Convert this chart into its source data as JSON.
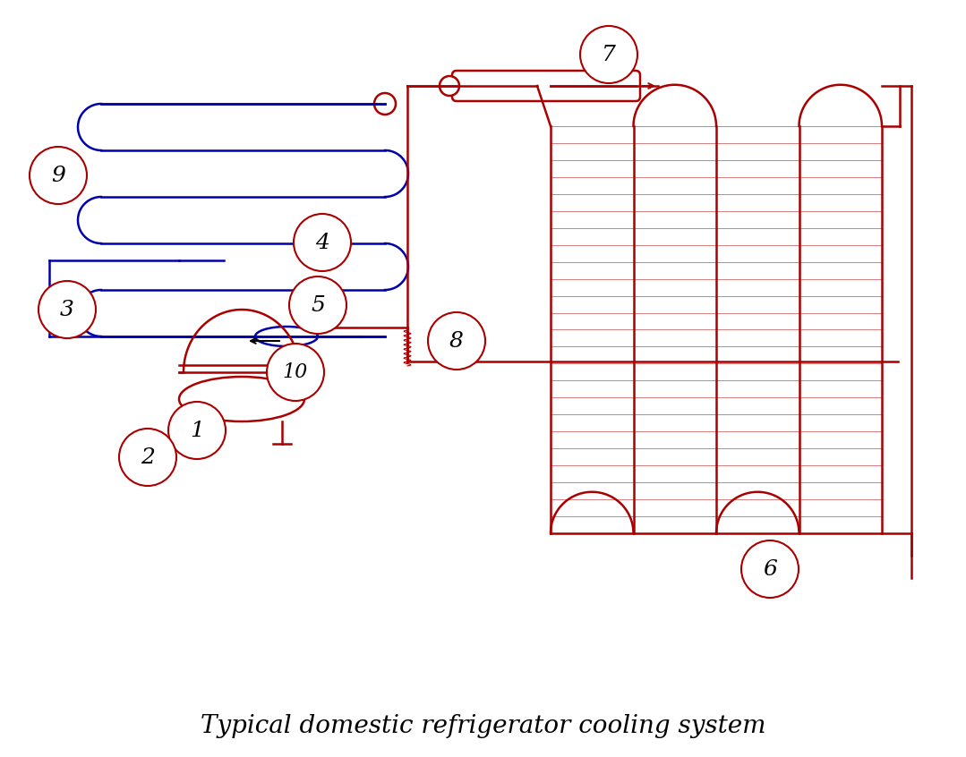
{
  "title": "Typical domestic refrigerator cooling system",
  "blue_color": "#0000AA",
  "red_color": "#AA0000",
  "label_color": "#AA0000",
  "bg_color": "#FFFFFF",
  "lw": 1.8,
  "label_fontsize": 18,
  "title_fontsize": 20
}
